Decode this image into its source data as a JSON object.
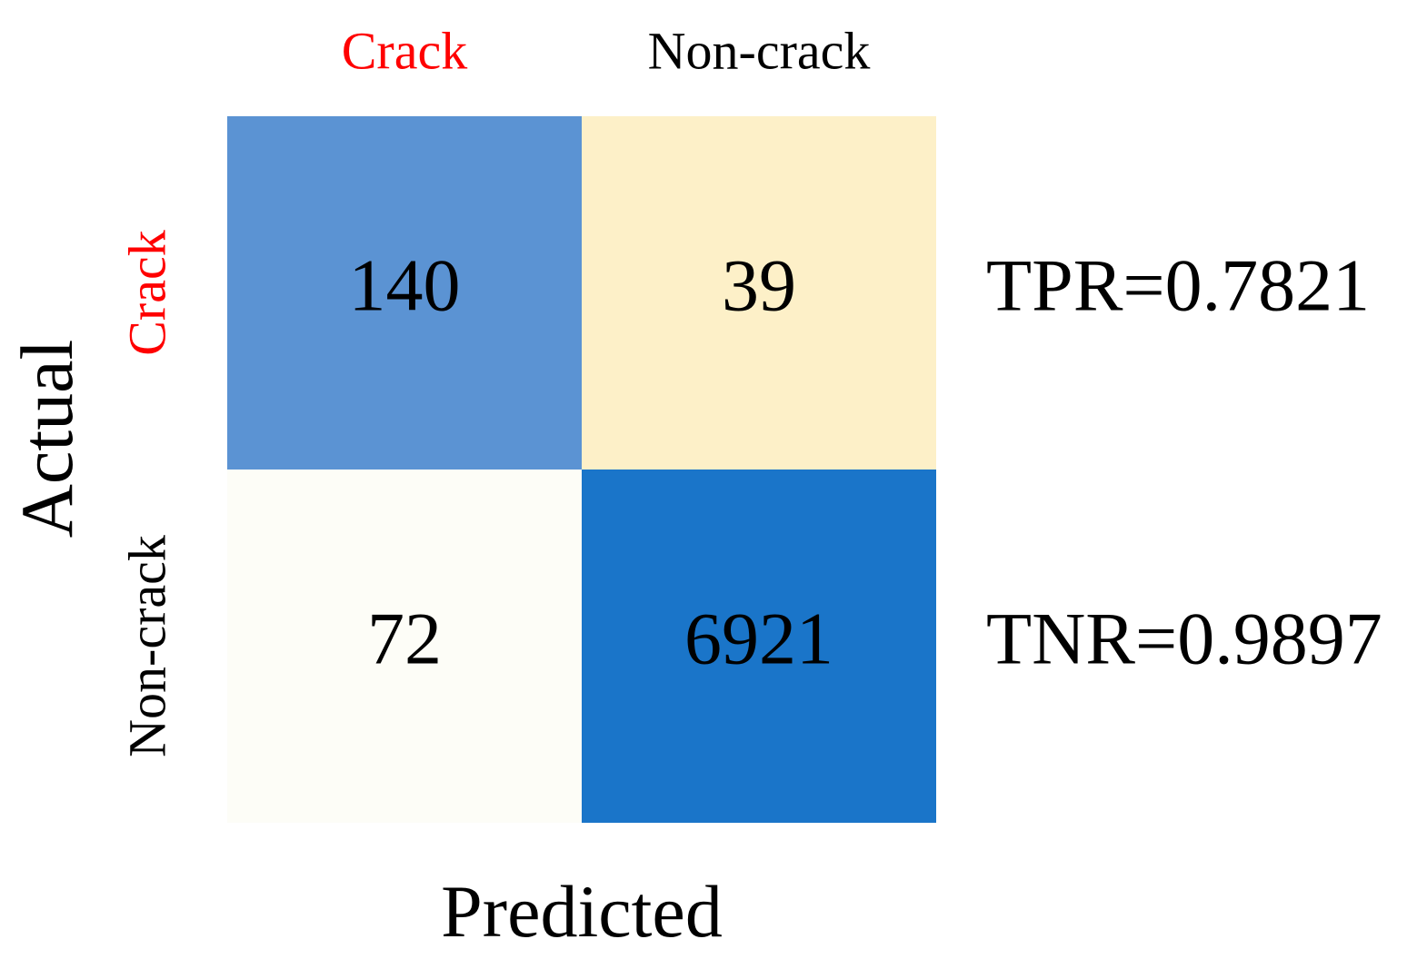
{
  "chart_data": {
    "type": "heatmap",
    "x_label": "Predicted",
    "y_label": "Actual",
    "x_categories": [
      "Crack",
      "Non-crack"
    ],
    "y_categories": [
      "Crack",
      "Non-crack"
    ],
    "category_colors": [
      "#ff0000",
      "#000000"
    ],
    "values": [
      [
        140,
        39
      ],
      [
        72,
        6921
      ]
    ],
    "cell_colors": [
      [
        "#5b93d3",
        "#fdf0c8"
      ],
      [
        "#fdfdf7",
        "#1a75c9"
      ]
    ],
    "annotations": [
      "TPR=0.7821",
      "TNR=0.9897"
    ]
  }
}
